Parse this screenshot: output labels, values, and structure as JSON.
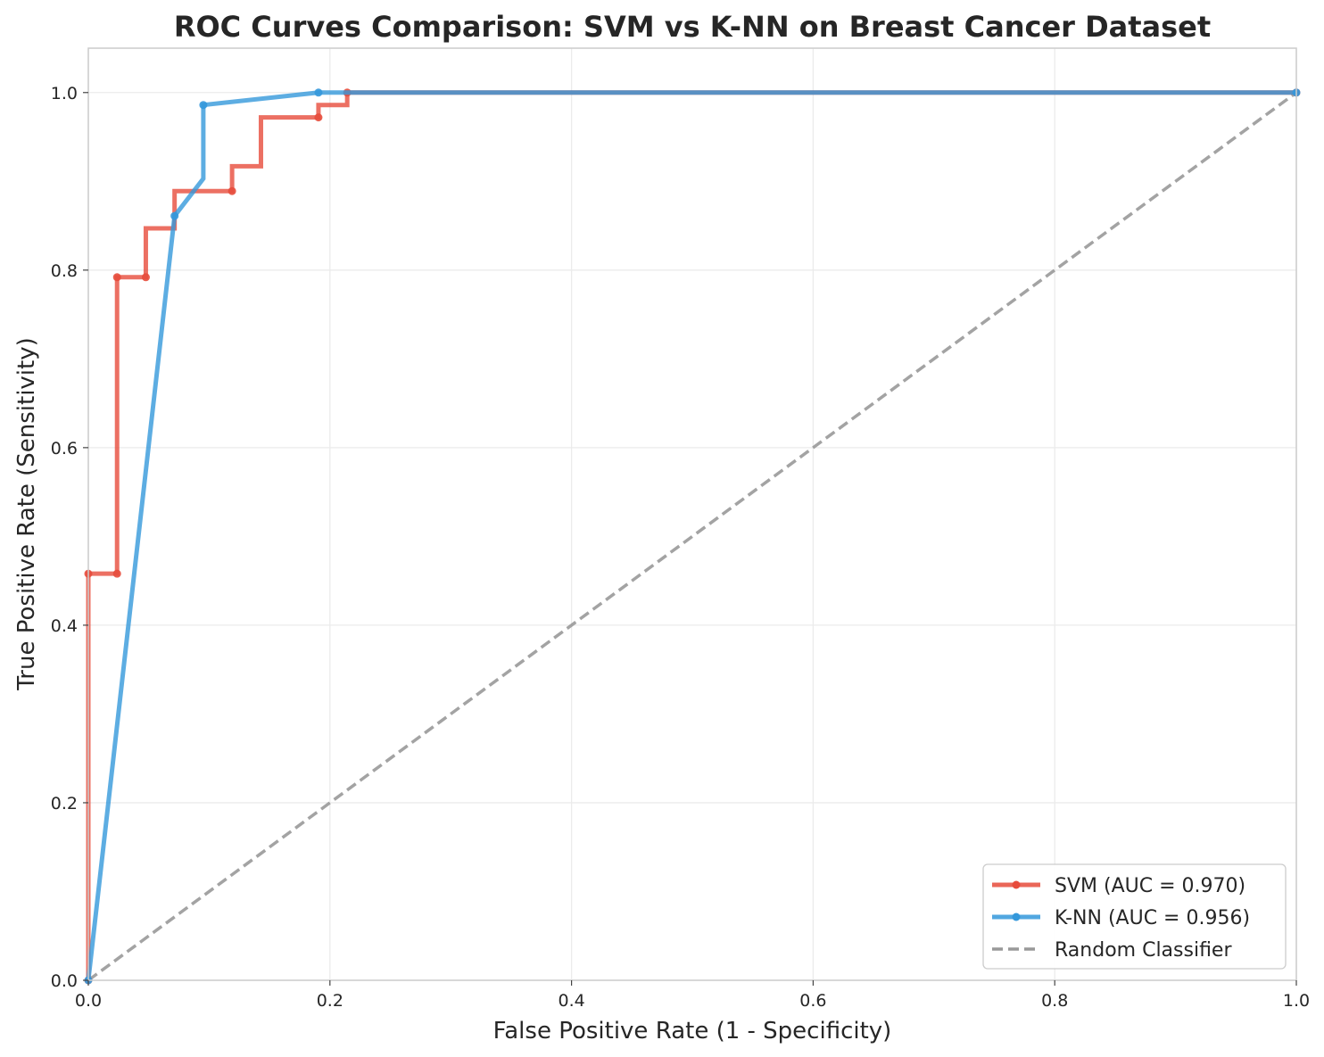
{
  "chart_data": {
    "type": "line",
    "title": "ROC Curves Comparison: SVM vs K-NN on Breast Cancer Dataset",
    "xlabel": "False Positive Rate (1 - Specificity)",
    "ylabel": "True Positive Rate (Sensitivity)",
    "xlim": [
      0.0,
      1.0
    ],
    "ylim": [
      0.0,
      1.05
    ],
    "xticks": [
      "0.0",
      "0.2",
      "0.4",
      "0.6",
      "0.8",
      "1.0"
    ],
    "yticks": [
      "0.0",
      "0.2",
      "0.4",
      "0.6",
      "0.8",
      "1.0"
    ],
    "grid": true,
    "legend_position": "lower-right",
    "series": [
      {
        "name": "SVM (AUC = 0.970)",
        "color": "#e74c3c",
        "style": "step",
        "x": [
          0.0,
          0.0,
          0.0238,
          0.0238,
          0.0476,
          0.0476,
          0.0714,
          0.0714,
          0.119,
          0.119,
          0.1429,
          0.1429,
          0.1905,
          0.1905,
          0.2143,
          0.2143,
          1.0
        ],
        "y": [
          0.0,
          0.458,
          0.458,
          0.792,
          0.792,
          0.847,
          0.847,
          0.889,
          0.889,
          0.917,
          0.917,
          0.972,
          0.972,
          0.986,
          0.986,
          1.0,
          1.0
        ],
        "markers_x": [
          0.0,
          0.0,
          0.0238,
          0.0238,
          0.0476,
          0.119,
          0.1905,
          0.2143,
          1.0
        ],
        "markers_y": [
          0.0,
          0.458,
          0.458,
          0.792,
          0.792,
          0.889,
          0.972,
          1.0,
          1.0
        ]
      },
      {
        "name": "K-NN (AUC = 0.956)",
        "color": "#3498db",
        "style": "line",
        "x": [
          0.0,
          0.0714,
          0.0952,
          0.0952,
          0.1905,
          1.0
        ],
        "y": [
          0.0,
          0.861,
          0.903,
          0.986,
          1.0,
          1.0
        ],
        "markers_x": [
          0.0,
          0.0714,
          0.0952,
          0.1905,
          1.0
        ],
        "markers_y": [
          0.0,
          0.861,
          0.986,
          1.0,
          1.0
        ]
      },
      {
        "name": "Random Classifier",
        "color": "#999999",
        "style": "dashed",
        "x": [
          0.0,
          1.0
        ],
        "y": [
          0.0,
          1.0
        ]
      }
    ]
  }
}
